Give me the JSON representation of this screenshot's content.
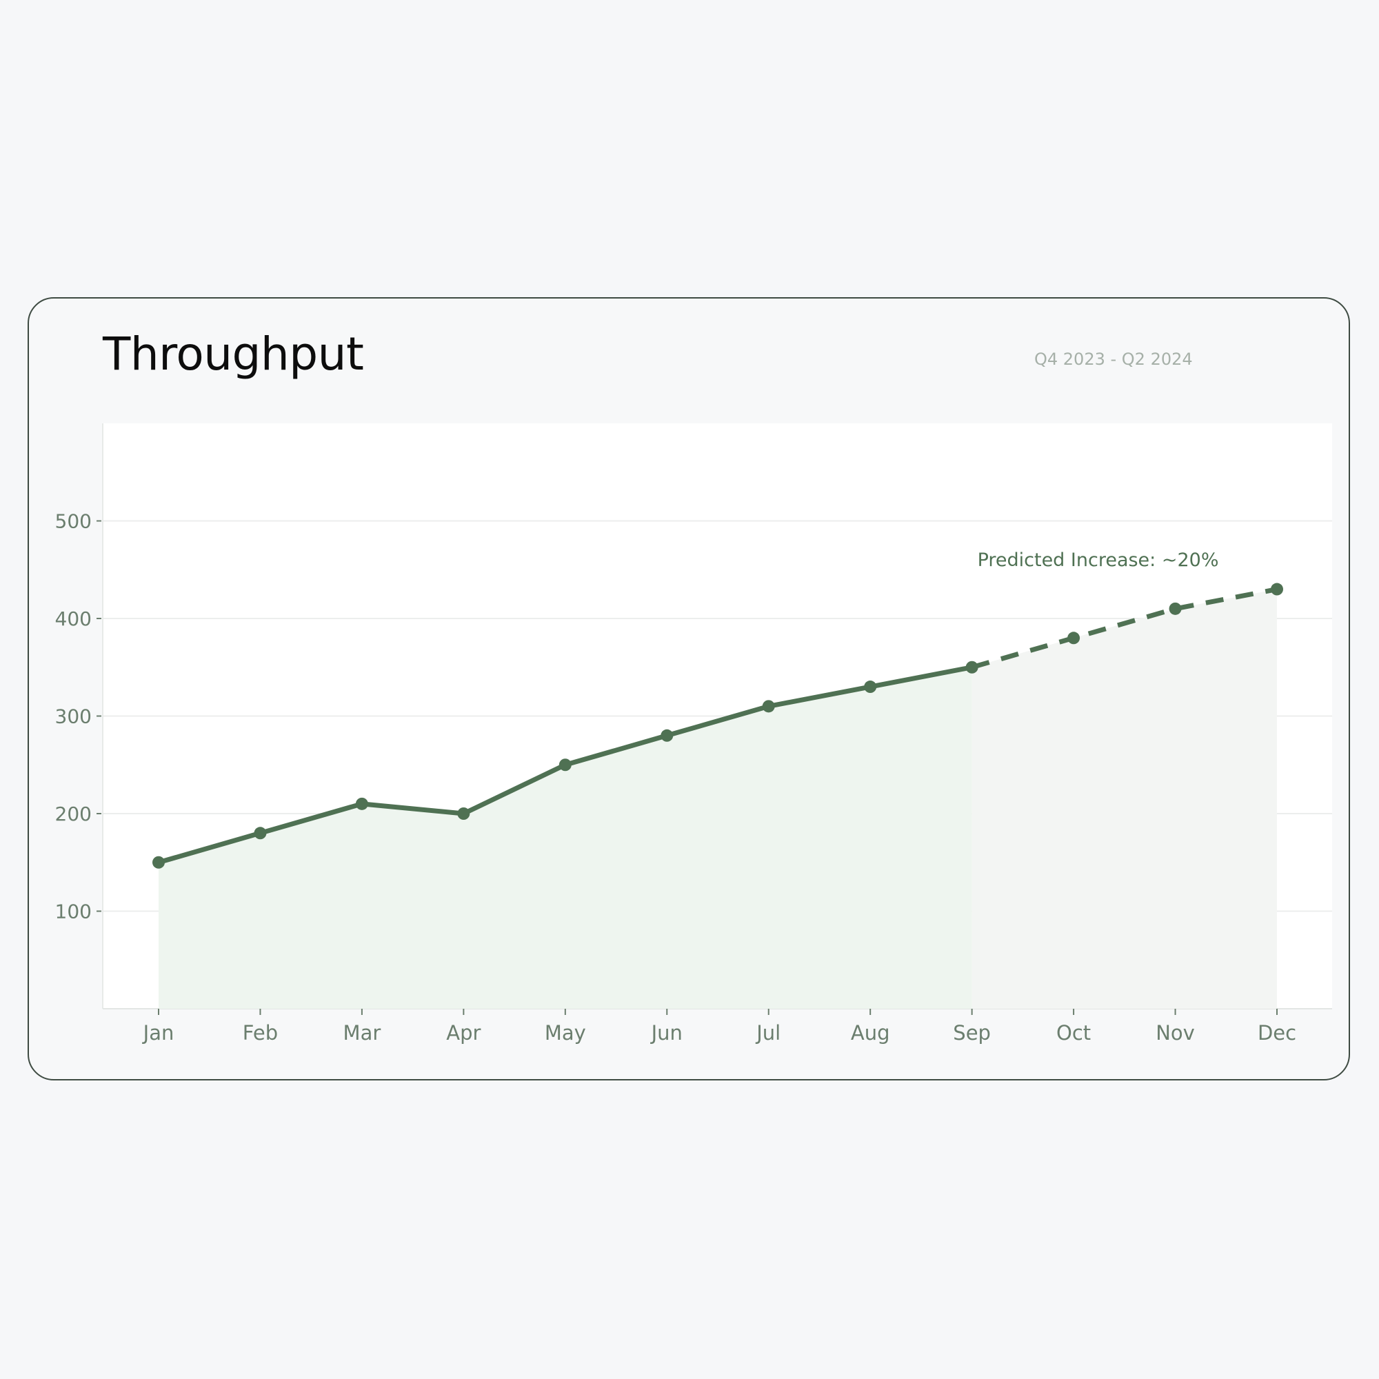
{
  "card": {
    "title": "Throughput",
    "subtitle": "Q4 2023 - Q2 2024"
  },
  "colors": {
    "line": "#4f7153",
    "area_actual": "#eef5ef",
    "area_predicted": "#f3f5f3",
    "axis_text": "#6b7e6e",
    "grid": "#eceeed"
  },
  "chart_data": {
    "type": "line",
    "categories": [
      "Jan",
      "Feb",
      "Mar",
      "Apr",
      "May",
      "Jun",
      "Jul",
      "Aug",
      "Sep",
      "Oct",
      "Nov",
      "Dec"
    ],
    "series": [
      {
        "values": [
          150,
          180,
          210,
          200,
          250,
          280,
          310,
          330,
          350,
          null,
          null,
          null
        ],
        "style": "solid"
      },
      {
        "values": [
          null,
          null,
          null,
          null,
          null,
          null,
          null,
          null,
          350,
          380,
          410,
          430
        ],
        "style": "dashed"
      }
    ],
    "yticks": [
      100,
      200,
      300,
      400,
      500
    ],
    "ylim": [
      0,
      600
    ],
    "xlabel": "",
    "ylabel": "",
    "grid": true,
    "annotation": {
      "text": "Predicted Increase: ~20%",
      "category": "Nov",
      "value": 455
    }
  }
}
